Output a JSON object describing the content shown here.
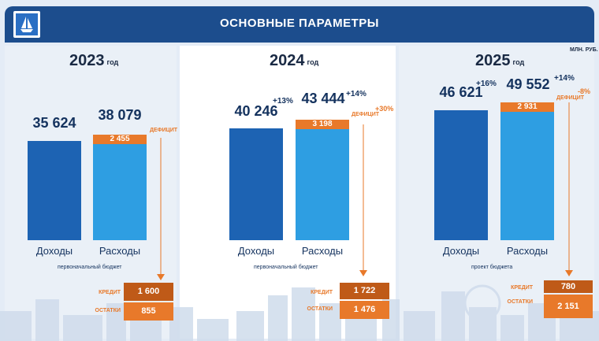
{
  "header": {
    "title": "ОСНОВНЫЕ ПАРАМЕТРЫ"
  },
  "unit_label": "МЛН. РУБ.",
  "colors": {
    "header": "#1c4d8d",
    "income": "#1d63b3",
    "expense": "#2e9ee2",
    "deficit": "#e8792a"
  },
  "labels": {
    "year_suffix": "год",
    "deficit": "ДЕФИЦИТ",
    "credit": "КРЕДИТ",
    "remainders": "ОСТАТКИ",
    "income": "Доходы",
    "expense": "Расходы"
  },
  "chart_data": [
    {
      "type": "bar",
      "year": "2023",
      "categories": [
        "Доходы",
        "Расходы"
      ],
      "values": [
        35624,
        38079
      ],
      "value_labels": [
        "35 624",
        "38 079"
      ],
      "deficit": 2455,
      "deficit_label": "2 455",
      "note": "первоначальный бюджет",
      "credit": "1 600",
      "remainders": "855"
    },
    {
      "type": "bar",
      "year": "2024",
      "categories": [
        "Доходы",
        "Расходы"
      ],
      "values": [
        40246,
        43444
      ],
      "value_labels": [
        "40 246",
        "43 444"
      ],
      "growth_labels": [
        "+13%",
        "+14%"
      ],
      "deficit": 3198,
      "deficit_label": "3 198",
      "deficit_growth": "+30%",
      "note": "первоначальный бюджет",
      "credit": "1 722",
      "remainders": "1 476"
    },
    {
      "type": "bar",
      "year": "2025",
      "categories": [
        "Доходы",
        "Расходы"
      ],
      "values": [
        46621,
        49552
      ],
      "value_labels": [
        "46 621",
        "49 552"
      ],
      "growth_labels": [
        "+16%",
        "+14%"
      ],
      "deficit": 2931,
      "deficit_label": "2 931",
      "deficit_growth": "-8%",
      "note": "проект бюджета",
      "credit": "780",
      "remainders": "2 151"
    }
  ]
}
